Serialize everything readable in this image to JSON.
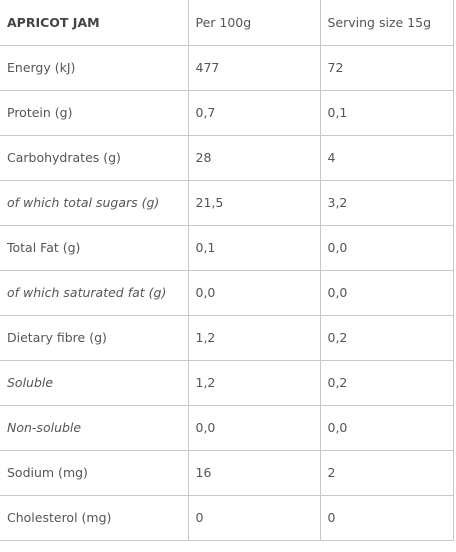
{
  "table": {
    "header": [
      "APRICOT JAM",
      "Per 100g",
      "Serving size 15g"
    ],
    "rows": [
      [
        "Energy (kJ)",
        "477",
        "72"
      ],
      [
        "Protein (g)",
        "0,7",
        "0,1"
      ],
      [
        "Carbohydrates (g)",
        "28",
        "4"
      ],
      [
        "of which total sugars (g)",
        "21,5",
        "3,2"
      ],
      [
        "Total Fat (g)",
        "0,1",
        "0,0"
      ],
      [
        "of which saturated fat (g)",
        "0,0",
        "0,0"
      ],
      [
        "Dietary fibre (g)",
        "1,2",
        "0,2"
      ],
      [
        "Soluble",
        "1,2",
        "0,2"
      ],
      [
        "Non-soluble",
        "0,0",
        "0,0"
      ],
      [
        "Sodium (mg)",
        "16",
        "2"
      ],
      [
        "Cholesterol (mg)",
        "0",
        "0"
      ]
    ]
  }
}
